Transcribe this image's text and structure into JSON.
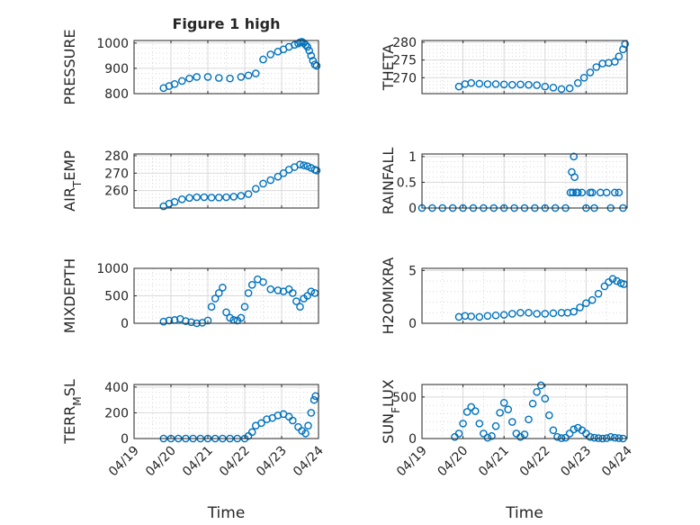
{
  "figure": {
    "title": "Figure 1 high"
  },
  "style": {
    "marker_color": "#0072BD",
    "axis_color": "#262626",
    "grid_color": "#d9d9d9",
    "background": "#ffffff"
  },
  "chart_data": [
    {
      "type": "scatter",
      "title": "Figure 1 high",
      "xlabel": "",
      "ylabel": "PRESSURE",
      "xlim": [
        0,
        5
      ],
      "ylim": [
        800,
        1010
      ],
      "yticks": [
        800,
        900,
        1000
      ],
      "x_tick_labels": [],
      "grid": true,
      "series": [
        {
          "x": [
            0.8,
            0.95,
            1.1,
            1.3,
            1.5,
            1.7,
            2.0,
            2.3,
            2.6,
            2.9,
            3.1,
            3.3,
            3.5,
            3.7,
            3.9,
            4.05,
            4.2,
            4.35,
            4.45,
            4.5,
            4.55,
            4.6,
            4.65,
            4.7,
            4.75,
            4.8,
            4.85,
            4.9,
            4.95
          ],
          "y": [
            822,
            830,
            838,
            850,
            860,
            866,
            866,
            862,
            860,
            866,
            872,
            880,
            935,
            955,
            966,
            975,
            985,
            993,
            998,
            1003,
            1005,
            1000,
            993,
            985,
            970,
            950,
            930,
            915,
            910
          ]
        }
      ]
    },
    {
      "type": "scatter",
      "xlabel": "",
      "ylabel": "THETA",
      "xlim": [
        0,
        5
      ],
      "ylim": [
        265.5,
        280.5
      ],
      "yticks": [
        270,
        275,
        280
      ],
      "x_tick_labels": [],
      "grid": true,
      "series": [
        {
          "x": [
            0.9,
            1.05,
            1.2,
            1.4,
            1.6,
            1.8,
            2.0,
            2.2,
            2.4,
            2.6,
            2.8,
            3.0,
            3.2,
            3.4,
            3.6,
            3.8,
            3.95,
            4.1,
            4.25,
            4.4,
            4.55,
            4.7,
            4.8,
            4.9,
            4.95
          ],
          "y": [
            267.5,
            268.2,
            268.5,
            268.3,
            268.2,
            268.2,
            268.1,
            268.0,
            268.1,
            268.0,
            267.9,
            267.5,
            267.2,
            266.8,
            267.0,
            268.5,
            270.0,
            271.5,
            273.0,
            274.0,
            274.2,
            274.5,
            276.0,
            278.0,
            279.5
          ]
        }
      ]
    },
    {
      "type": "scatter",
      "xlabel": "",
      "ylabel": "AIR_TEMP",
      "xlim": [
        0,
        5
      ],
      "ylim": [
        250,
        281
      ],
      "yticks": [
        260,
        270,
        280
      ],
      "x_tick_labels": [],
      "grid": true,
      "series": [
        {
          "x": [
            0.8,
            0.95,
            1.1,
            1.3,
            1.5,
            1.7,
            1.9,
            2.1,
            2.3,
            2.5,
            2.7,
            2.9,
            3.1,
            3.3,
            3.5,
            3.7,
            3.9,
            4.05,
            4.2,
            4.35,
            4.5,
            4.6,
            4.7,
            4.8,
            4.9,
            4.95
          ],
          "y": [
            251,
            252.5,
            253.5,
            255,
            255.8,
            256.2,
            256.2,
            256.0,
            256.0,
            256.2,
            256.5,
            257.0,
            258.0,
            261.0,
            264.0,
            266.0,
            268.0,
            270.0,
            272.0,
            273.5,
            275.0,
            274.5,
            274.0,
            273.0,
            272.0,
            271.5
          ]
        }
      ]
    },
    {
      "type": "scatter",
      "xlabel": "",
      "ylabel": "RAINFALL",
      "xlim": [
        0,
        5
      ],
      "ylim": [
        0,
        1.05
      ],
      "yticks": [
        0,
        0.5,
        1
      ],
      "x_tick_labels": [],
      "grid": true,
      "series": [
        {
          "x": [
            0.0,
            0.25,
            0.5,
            0.75,
            1.0,
            1.25,
            1.5,
            1.75,
            2.0,
            2.25,
            2.5,
            2.75,
            3.0,
            3.25,
            3.5,
            3.62,
            3.65,
            3.68,
            3.7,
            3.72,
            3.76,
            3.8,
            3.9,
            4.0,
            4.1,
            4.15,
            4.2,
            4.35,
            4.5,
            4.6,
            4.7,
            4.8,
            4.9
          ],
          "y": [
            0,
            0,
            0,
            0,
            0,
            0,
            0,
            0,
            0,
            0,
            0,
            0,
            0,
            0,
            0,
            0.3,
            0.7,
            0.3,
            1.0,
            0.6,
            0.3,
            0.3,
            0.3,
            0,
            0.3,
            0.3,
            0,
            0.3,
            0.3,
            0,
            0.3,
            0.3,
            0
          ]
        }
      ]
    },
    {
      "type": "scatter",
      "xlabel": "",
      "ylabel": "MIXDEPTH",
      "xlim": [
        0,
        5
      ],
      "ylim": [
        0,
        1000
      ],
      "yticks": [
        0,
        500,
        1000
      ],
      "x_tick_labels": [],
      "grid": true,
      "series": [
        {
          "x": [
            0.8,
            0.95,
            1.1,
            1.25,
            1.4,
            1.55,
            1.7,
            1.85,
            2.0,
            2.1,
            2.2,
            2.3,
            2.4,
            2.5,
            2.6,
            2.7,
            2.8,
            2.9,
            3.0,
            3.1,
            3.2,
            3.35,
            3.5,
            3.7,
            3.9,
            4.05,
            4.2,
            4.3,
            4.4,
            4.5,
            4.6,
            4.7,
            4.8,
            4.9
          ],
          "y": [
            30,
            50,
            60,
            80,
            40,
            20,
            0,
            10,
            50,
            300,
            450,
            550,
            650,
            200,
            100,
            60,
            50,
            100,
            300,
            550,
            700,
            800,
            750,
            620,
            600,
            580,
            620,
            550,
            400,
            300,
            450,
            500,
            580,
            550
          ]
        }
      ]
    },
    {
      "type": "scatter",
      "xlabel": "",
      "ylabel": "H2OMIXRA",
      "xlim": [
        0,
        5
      ],
      "ylim": [
        0,
        5.2
      ],
      "yticks": [
        0,
        5
      ],
      "x_tick_labels": [],
      "grid": true,
      "series": [
        {
          "x": [
            0.9,
            1.05,
            1.2,
            1.4,
            1.6,
            1.8,
            2.0,
            2.2,
            2.4,
            2.6,
            2.8,
            3.0,
            3.2,
            3.4,
            3.55,
            3.7,
            3.85,
            4.0,
            4.15,
            4.3,
            4.45,
            4.55,
            4.65,
            4.75,
            4.85,
            4.92
          ],
          "y": [
            0.6,
            0.7,
            0.65,
            0.6,
            0.7,
            0.75,
            0.8,
            0.9,
            1.0,
            1.0,
            0.9,
            0.9,
            0.95,
            1.0,
            1.0,
            1.1,
            1.5,
            1.9,
            2.2,
            2.8,
            3.5,
            3.9,
            4.2,
            4.0,
            3.8,
            3.7
          ]
        }
      ]
    },
    {
      "type": "scatter",
      "xlabel": "Time",
      "ylabel": "TERR_MSL",
      "xlim": [
        0,
        5
      ],
      "ylim": [
        0,
        420
      ],
      "yticks": [
        0,
        200,
        400
      ],
      "x_tick_labels": [
        "04/19",
        "04/20",
        "04/21",
        "04/22",
        "04/23",
        "04/24"
      ],
      "grid": true,
      "series": [
        {
          "x": [
            0.8,
            1.0,
            1.2,
            1.4,
            1.6,
            1.8,
            2.0,
            2.2,
            2.4,
            2.6,
            2.8,
            3.0,
            3.1,
            3.2,
            3.3,
            3.45,
            3.6,
            3.75,
            3.9,
            4.05,
            4.2,
            4.3,
            4.45,
            4.55,
            4.65,
            4.72,
            4.8,
            4.88,
            4.92
          ],
          "y": [
            0,
            0,
            0,
            0,
            0,
            0,
            0,
            0,
            0,
            0,
            0,
            0,
            20,
            50,
            100,
            120,
            150,
            160,
            180,
            190,
            170,
            140,
            90,
            60,
            40,
            100,
            200,
            300,
            330
          ]
        }
      ]
    },
    {
      "type": "scatter",
      "xlabel": "Time",
      "ylabel": "SUN_FLUX",
      "xlim": [
        0,
        5
      ],
      "ylim": [
        0,
        650
      ],
      "yticks": [
        0,
        500
      ],
      "x_tick_labels": [
        "04/19",
        "04/20",
        "04/21",
        "04/22",
        "04/23",
        "04/24"
      ],
      "grid": true,
      "series": [
        {
          "x": [
            0.8,
            0.9,
            1.0,
            1.1,
            1.2,
            1.3,
            1.4,
            1.5,
            1.6,
            1.7,
            1.8,
            1.9,
            2.0,
            2.1,
            2.2,
            2.3,
            2.4,
            2.5,
            2.6,
            2.7,
            2.8,
            2.9,
            3.0,
            3.1,
            3.2,
            3.3,
            3.4,
            3.5,
            3.6,
            3.7,
            3.8,
            3.9,
            4.0,
            4.1,
            4.2,
            4.3,
            4.4,
            4.5,
            4.6,
            4.7,
            4.8,
            4.9
          ],
          "y": [
            20,
            60,
            180,
            320,
            380,
            330,
            180,
            60,
            10,
            30,
            150,
            310,
            430,
            350,
            200,
            60,
            20,
            50,
            230,
            420,
            560,
            640,
            480,
            280,
            100,
            20,
            5,
            10,
            60,
            110,
            130,
            100,
            60,
            20,
            10,
            5,
            0,
            5,
            20,
            10,
            5,
            0
          ]
        }
      ]
    }
  ]
}
